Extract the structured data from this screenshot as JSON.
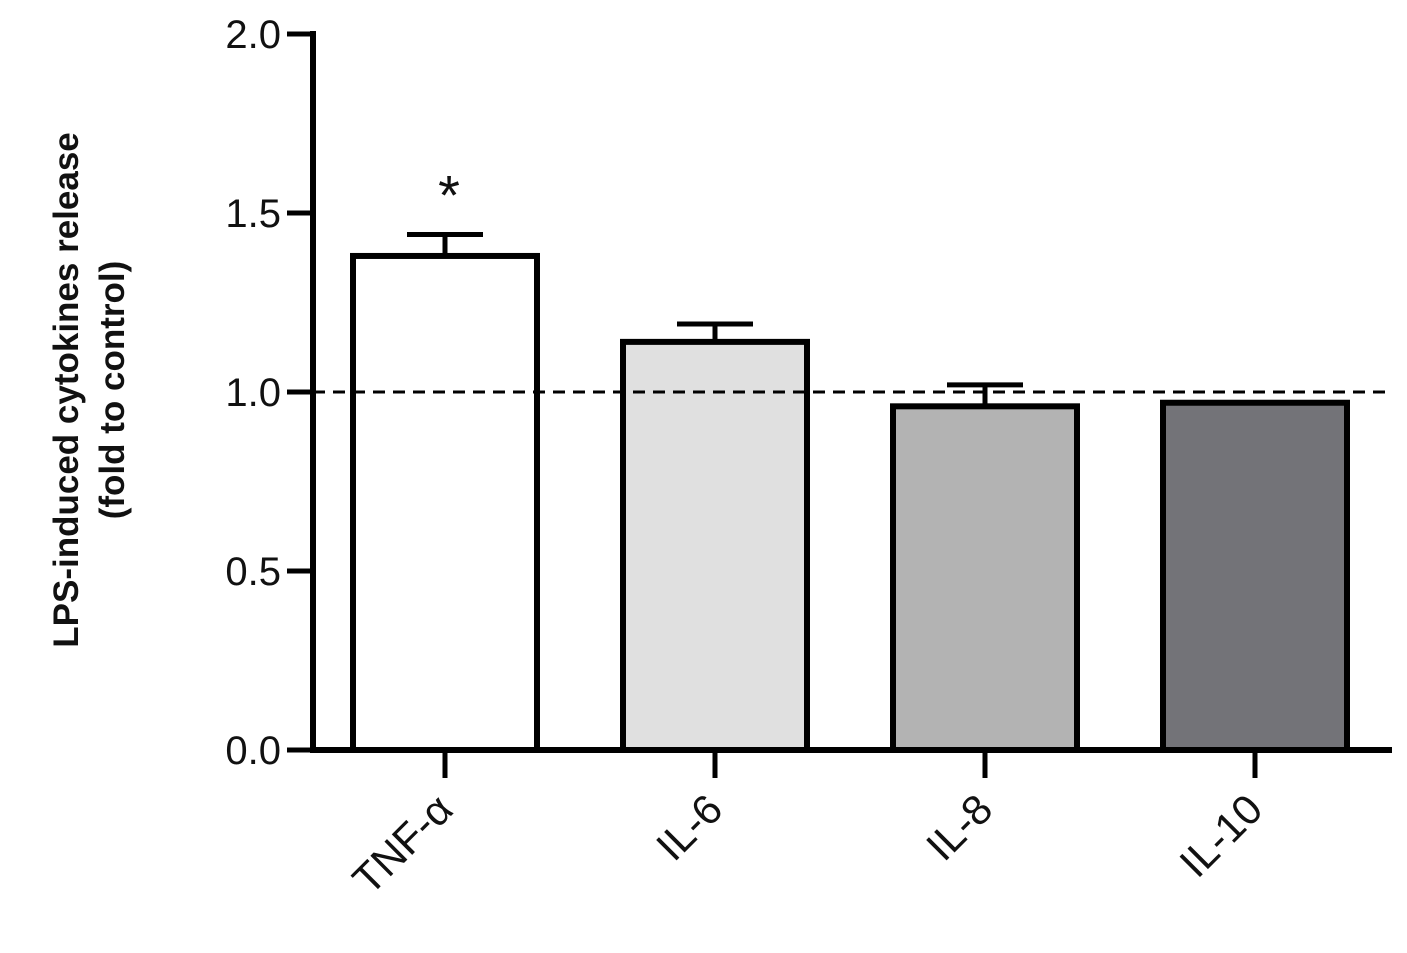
{
  "chart_data": {
    "type": "bar",
    "categories": [
      "TNF-α",
      "IL-6",
      "IL-8",
      "IL-10"
    ],
    "values": [
      1.38,
      1.14,
      0.96,
      0.97
    ],
    "error_upper": [
      0.06,
      0.05,
      0.06,
      0.0
    ],
    "colors": [
      "#ffffff",
      "#e0e0e0",
      "#b3b3b3",
      "#737378"
    ],
    "annotations": [
      "*",
      "",
      "",
      ""
    ],
    "ylabel_line1": "LPS-induced cytokines release",
    "ylabel_line2": "(fold to control)",
    "xlabel": "",
    "ylim": [
      0,
      2.0
    ],
    "yticks": [
      "0.0",
      "0.5",
      "1.0",
      "1.5",
      "2.0"
    ],
    "yticks_values": [
      0,
      0.5,
      1.0,
      1.5,
      2.0
    ],
    "reference_line": 1.0,
    "grid": false,
    "legend": "none"
  }
}
